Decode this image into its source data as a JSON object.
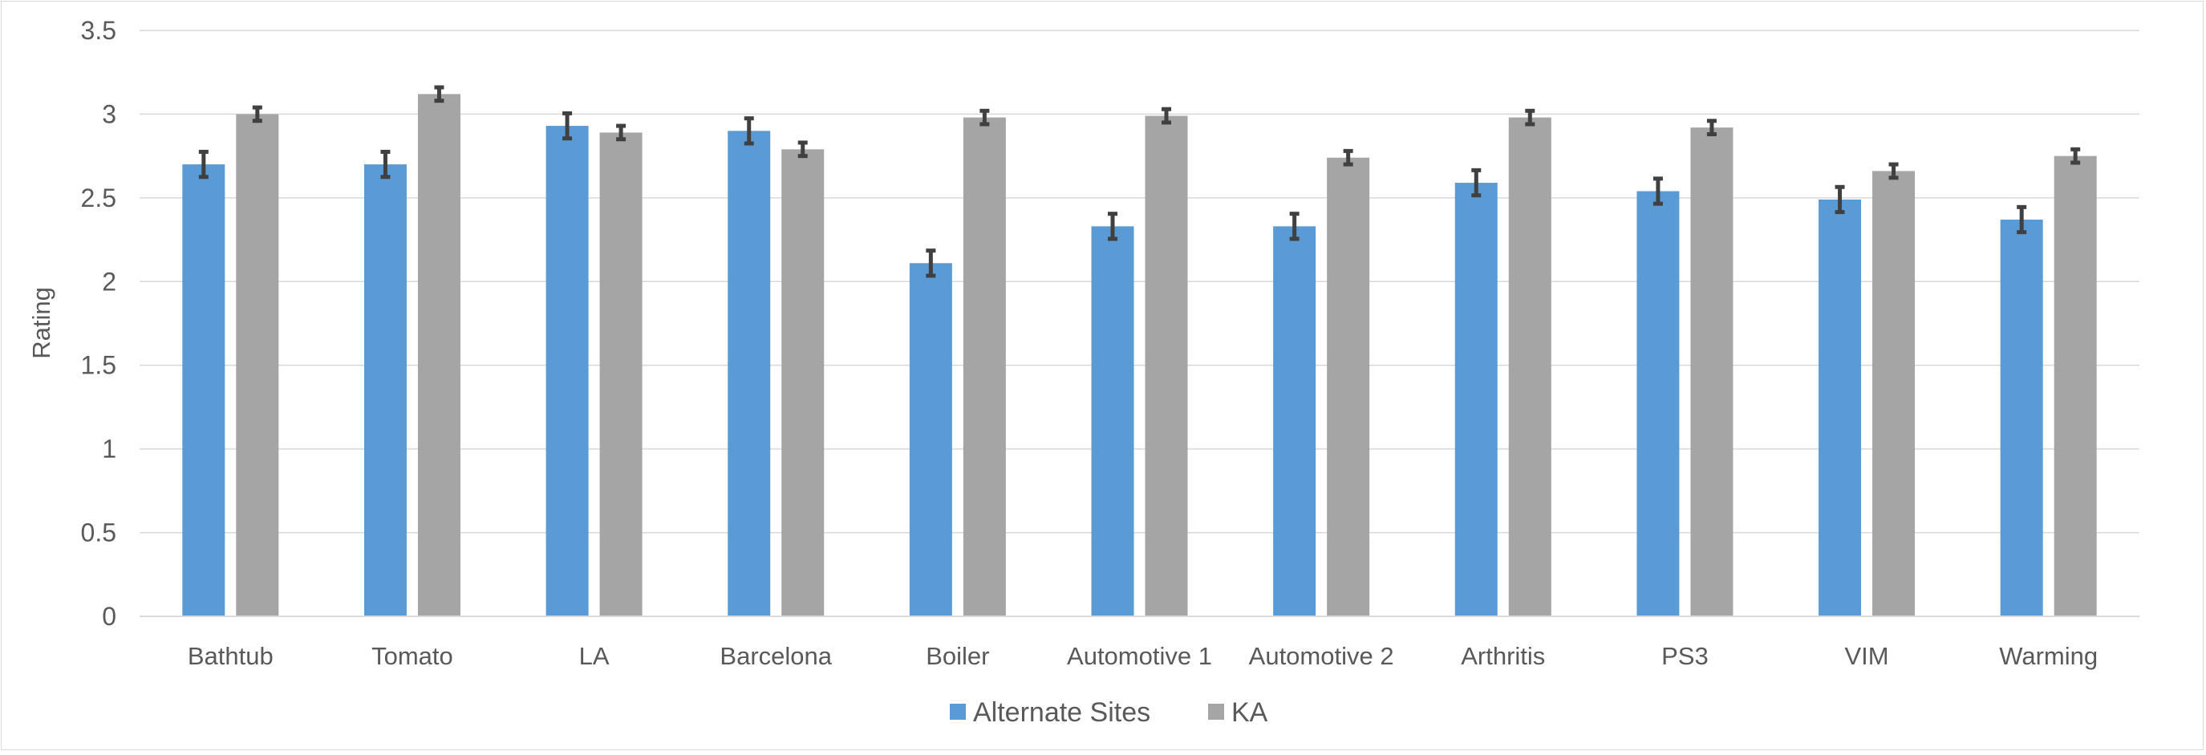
{
  "chart_data": {
    "type": "bar",
    "title": "",
    "xlabel": "",
    "ylabel": "Rating",
    "ylim": [
      0,
      3.5
    ],
    "yticks": [
      "0",
      "0.5",
      "1",
      "1.5",
      "2",
      "2.5",
      "3",
      "3.5"
    ],
    "grid": true,
    "legend_position": "bottom",
    "categories": [
      "Bathtub",
      "Tomato",
      "LA",
      "Barcelona",
      "Boiler",
      "Automotive 1",
      "Automotive 2",
      "Arthritis",
      "PS3",
      "VIM",
      "Warming"
    ],
    "series": [
      {
        "name": "Alternate Sites",
        "color": "#5b9bd5",
        "values": [
          2.7,
          2.7,
          2.93,
          2.9,
          2.11,
          2.33,
          2.33,
          2.59,
          2.54,
          2.49,
          2.37
        ],
        "error": [
          0.075,
          0.075,
          0.075,
          0.075,
          0.075,
          0.075,
          0.075,
          0.075,
          0.075,
          0.075,
          0.075
        ]
      },
      {
        "name": "KA",
        "color": "#a5a5a5",
        "values": [
          3.0,
          3.12,
          2.89,
          2.79,
          2.98,
          2.99,
          2.74,
          2.98,
          2.92,
          2.66,
          2.75
        ],
        "error": [
          0.04,
          0.04,
          0.04,
          0.04,
          0.04,
          0.04,
          0.04,
          0.04,
          0.04,
          0.04,
          0.04
        ]
      }
    ],
    "colors": {
      "grid": "#d9d9d9",
      "axis": "#d9d9d9",
      "text": "#595959",
      "errorbar": "#404040"
    }
  }
}
